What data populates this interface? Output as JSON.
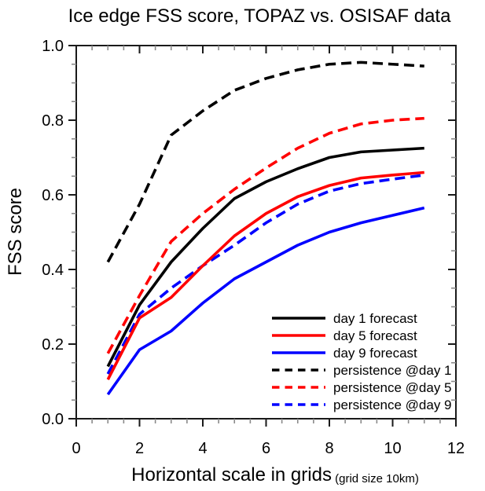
{
  "chart_data": {
    "type": "line",
    "title": "Ice edge FSS score, TOPAZ vs. OSISAF data",
    "xlabel": "Horizontal scale in grids",
    "xlabel_note": "(grid size 10km)",
    "ylabel": "FSS score",
    "xlim": [
      0,
      12
    ],
    "ylim": [
      0.0,
      1.0
    ],
    "xticks": [
      0,
      2,
      4,
      6,
      8,
      10,
      12
    ],
    "xticklabels": [
      "0",
      "2",
      "4",
      "6",
      "8",
      "10",
      "12"
    ],
    "x_minor_step": 0.5,
    "yticks": [
      0.0,
      0.2,
      0.4,
      0.6,
      0.8,
      1.0
    ],
    "yticklabels": [
      "0.0",
      "0.2",
      "0.4",
      "0.6",
      "0.8",
      "1.0"
    ],
    "y_minor_step": 0.05,
    "grid": false,
    "legend_position": "inside lower right",
    "frame_color": "#1a1a1a",
    "minor_tick_color": "#8a8a8a",
    "x": [
      1,
      2,
      3,
      4,
      5,
      6,
      7,
      8,
      9,
      10,
      11
    ],
    "series": [
      {
        "name": "day 1 forecast",
        "color": "#000000",
        "style": "solid",
        "values": [
          0.14,
          0.305,
          0.42,
          0.51,
          0.59,
          0.635,
          0.67,
          0.7,
          0.715,
          0.72,
          0.725
        ]
      },
      {
        "name": "day 5 forecast",
        "color": "#ff0000",
        "style": "solid",
        "values": [
          0.105,
          0.27,
          0.325,
          0.41,
          0.49,
          0.55,
          0.595,
          0.625,
          0.645,
          0.653,
          0.66
        ]
      },
      {
        "name": "day 9 forecast",
        "color": "#0000ff",
        "style": "solid",
        "values": [
          0.065,
          0.185,
          0.235,
          0.31,
          0.375,
          0.42,
          0.465,
          0.5,
          0.525,
          0.545,
          0.565
        ]
      },
      {
        "name": "persistence @day 1",
        "color": "#000000",
        "style": "dashed",
        "values": [
          0.42,
          0.575,
          0.76,
          0.825,
          0.88,
          0.912,
          0.935,
          0.95,
          0.955,
          0.95,
          0.945
        ]
      },
      {
        "name": "persistence @day 5",
        "color": "#ff0000",
        "style": "dashed",
        "values": [
          0.175,
          0.33,
          0.475,
          0.55,
          0.615,
          0.672,
          0.725,
          0.765,
          0.79,
          0.8,
          0.805
        ]
      },
      {
        "name": "persistence @day 9",
        "color": "#0000ff",
        "style": "dashed",
        "values": [
          0.12,
          0.28,
          0.35,
          0.41,
          0.465,
          0.525,
          0.575,
          0.61,
          0.63,
          0.642,
          0.653
        ]
      }
    ]
  }
}
